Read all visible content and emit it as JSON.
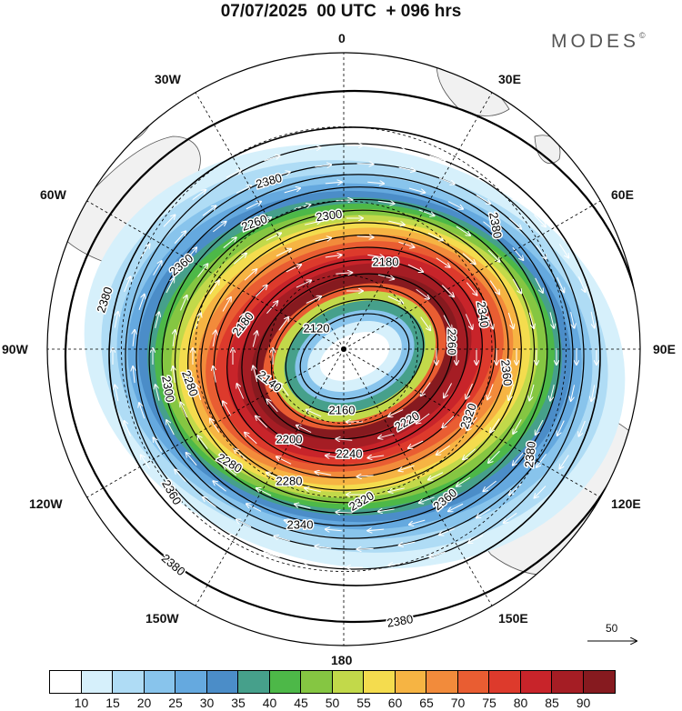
{
  "header": {
    "title": "07/07/2025  00 UTC  + 096 hrs",
    "brand": "MODES",
    "brand_mark": "©"
  },
  "map": {
    "projection": "polar-stereographic-south",
    "longitude_labels": [
      "0",
      "30E",
      "60E",
      "90E",
      "120E",
      "150E",
      "180",
      "150W",
      "120W",
      "90W",
      "60W",
      "30W"
    ],
    "contour_labels": [
      "2120",
      "2140",
      "2160",
      "2180",
      "2200",
      "2220",
      "2240",
      "2260",
      "2280",
      "2300",
      "2320",
      "2340",
      "2360",
      "2380"
    ],
    "reference_vector": {
      "label": "50",
      "icon": "arrow-right-icon"
    }
  },
  "colorbar": {
    "colors": [
      "#ffffff",
      "#d6f0fb",
      "#afdcf5",
      "#88c4ec",
      "#65a9df",
      "#4b8dc8",
      "#46a08b",
      "#4db848",
      "#85c642",
      "#c2d94a",
      "#f4dc4e",
      "#f6b443",
      "#f28b3b",
      "#e95d32",
      "#dd3a2c",
      "#c8242a",
      "#a51d24",
      "#861a1f"
    ],
    "labels": [
      "10",
      "15",
      "20",
      "25",
      "30",
      "35",
      "40",
      "45",
      "50",
      "55",
      "60",
      "65",
      "70",
      "75",
      "80",
      "85",
      "90"
    ]
  }
}
